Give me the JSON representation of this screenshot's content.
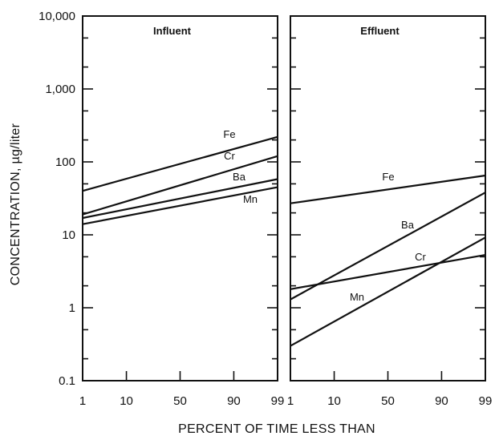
{
  "chart_data": {
    "type": "line",
    "ylabel": "CONCENTRATION, µg/liter",
    "xlabel": "PERCENT OF TIME LESS THAN",
    "y_scale": "log",
    "ylim": [
      0.1,
      10000
    ],
    "yticks": [
      0.1,
      1,
      10,
      100,
      1000,
      10000
    ],
    "ytick_labels": [
      "0.1",
      "1",
      "10",
      "100",
      "1,000",
      "10,000"
    ],
    "x_scale": "probability",
    "xticks": [
      1,
      10,
      50,
      90,
      99
    ],
    "xtick_labels": [
      "1",
      "10",
      "50",
      "90",
      "99"
    ],
    "panels": [
      {
        "title": "Influent",
        "series": [
          {
            "name": "Fe",
            "x": [
              1,
              99
            ],
            "y": [
              40,
              220
            ]
          },
          {
            "name": "Cr",
            "x": [
              1,
              99
            ],
            "y": [
              19,
              120
            ]
          },
          {
            "name": "Ba",
            "x": [
              1,
              99
            ],
            "y": [
              17,
              58
            ]
          },
          {
            "name": "Mn",
            "x": [
              1,
              99
            ],
            "y": [
              14,
              45
            ]
          }
        ]
      },
      {
        "title": "Effluent",
        "series": [
          {
            "name": "Fe",
            "x": [
              1,
              99
            ],
            "y": [
              27,
              65
            ]
          },
          {
            "name": "Ba",
            "x": [
              1,
              99
            ],
            "y": [
              1.3,
              38
            ]
          },
          {
            "name": "Cr",
            "x": [
              1,
              99
            ],
            "y": [
              1.8,
              5.3
            ]
          },
          {
            "name": "Mn",
            "x": [
              1,
              99
            ],
            "y": [
              0.3,
              9.2
            ]
          }
        ]
      }
    ]
  }
}
